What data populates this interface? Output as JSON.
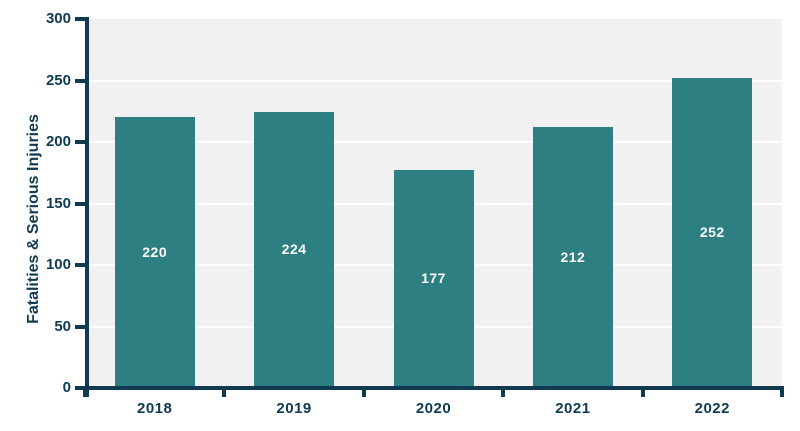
{
  "chart_data": {
    "type": "bar",
    "categories": [
      "2018",
      "2019",
      "2020",
      "2021",
      "2022"
    ],
    "values": [
      220,
      224,
      177,
      212,
      252
    ],
    "title": "",
    "xlabel": "",
    "ylabel": "Fatalities & Serious Injuries",
    "ylim": [
      0,
      300
    ],
    "yticks": [
      0,
      50,
      100,
      150,
      200,
      250,
      300
    ],
    "grid": "horizontal",
    "legend": "none",
    "bar_value_labels": [
      "220",
      "224",
      "177",
      "212",
      "252"
    ],
    "bar_value_label_position": "inside-center"
  },
  "colors": {
    "bar": "#2e7f81",
    "axis": "#0f3a51",
    "plot_background": "#f1f1f1",
    "page_background": "#ffffff",
    "gridline": "#ffffff",
    "bar_label": "#ffffff"
  }
}
